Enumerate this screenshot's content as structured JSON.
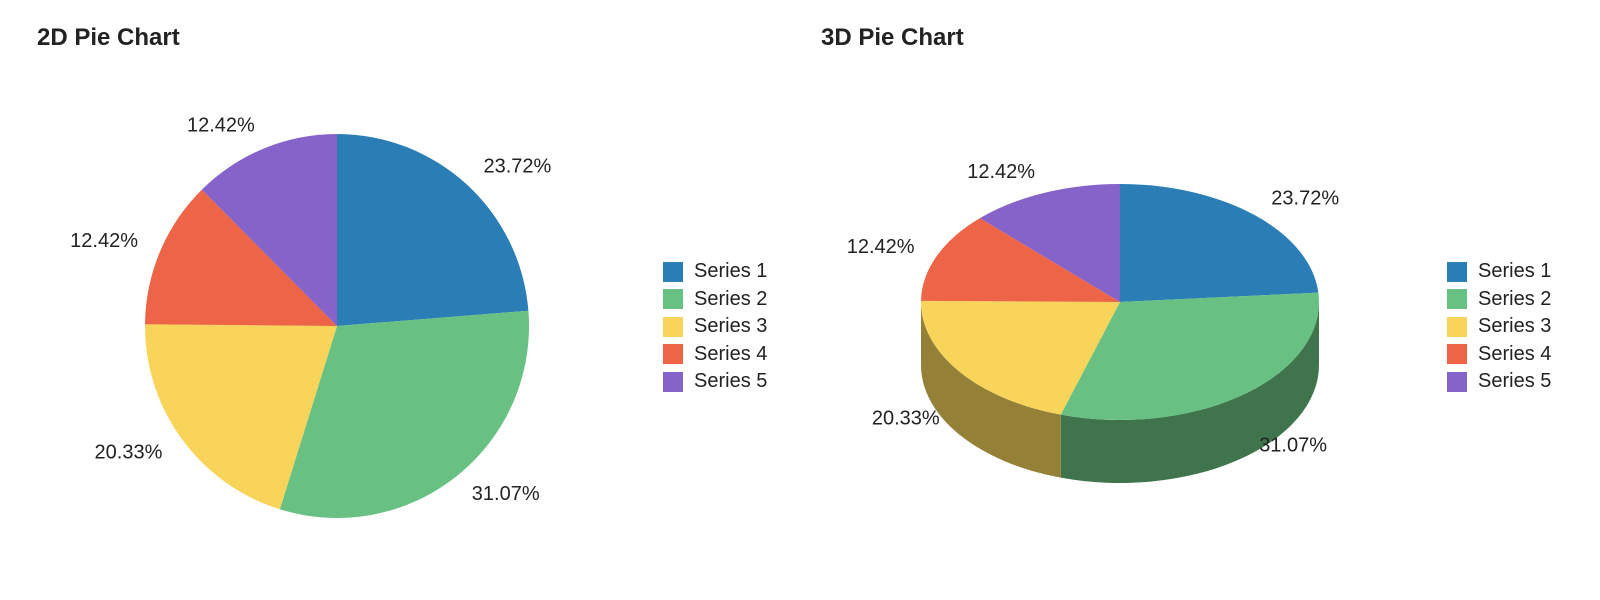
{
  "chart_data": [
    {
      "type": "pie",
      "title": "2D Pie Chart",
      "style": "2d",
      "categories": [
        "Series 1",
        "Series 2",
        "Series 3",
        "Series 4",
        "Series 5"
      ],
      "values": [
        23.72,
        31.07,
        20.33,
        12.42,
        12.42
      ],
      "labels": [
        "23.72%",
        "31.07%",
        "20.33%",
        "12.42%",
        "12.42%"
      ],
      "colors": [
        "#2a7db5",
        "#68c183",
        "#f9d45b",
        "#ed6446",
        "#8563c8"
      ],
      "legend": "right"
    },
    {
      "type": "pie",
      "title": "3D Pie Chart",
      "style": "3d",
      "categories": [
        "Series 1",
        "Series 2",
        "Series 3",
        "Series 4",
        "Series 5"
      ],
      "values": [
        23.72,
        31.07,
        20.33,
        12.42,
        12.42
      ],
      "labels": [
        "23.72%",
        "31.07%",
        "20.33%",
        "12.42%",
        "12.42%"
      ],
      "colors": [
        "#2a7db5",
        "#68c183",
        "#f9d45b",
        "#ed6446",
        "#8563c8"
      ],
      "side_colors": [
        "#1e5a82",
        "#3f744d",
        "#958037",
        "#9c3f2c",
        "#543e80"
      ],
      "legend": "right"
    }
  ]
}
